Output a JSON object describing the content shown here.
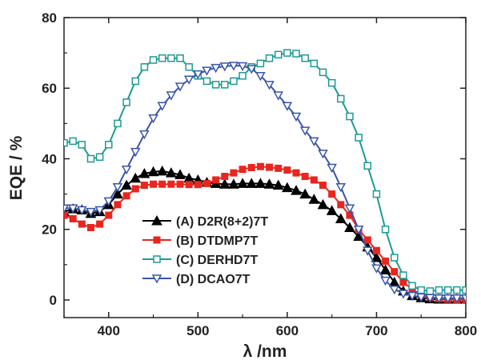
{
  "chart_data": {
    "type": "line",
    "xlabel": "λ /nm",
    "ylabel": "EQE / %",
    "xlim": [
      350,
      800
    ],
    "ylim": [
      -5,
      80
    ],
    "xticks": [
      400,
      500,
      600,
      700,
      800
    ],
    "yticks": [
      0,
      20,
      40,
      60,
      80
    ],
    "grid": false,
    "legend_position": "lower-left",
    "series": [
      {
        "name": "(A) D2R(8+2)7T",
        "color": "#000000",
        "marker": "triangle-up",
        "x": [
          350,
          360,
          370,
          380,
          390,
          400,
          410,
          420,
          430,
          440,
          450,
          460,
          470,
          480,
          490,
          500,
          510,
          520,
          530,
          540,
          550,
          560,
          570,
          580,
          590,
          600,
          610,
          620,
          630,
          640,
          650,
          660,
          670,
          680,
          690,
          700,
          710,
          720,
          730,
          740,
          750,
          760,
          770,
          780,
          790,
          800
        ],
        "y": [
          25,
          25.8,
          25.5,
          24.5,
          25,
          27,
          30,
          32.5,
          34.5,
          35.8,
          36.3,
          36.5,
          36,
          35.5,
          34.5,
          34,
          33.3,
          33,
          32.8,
          32.8,
          33,
          33,
          33,
          32.8,
          32.5,
          31.8,
          31,
          30,
          28.5,
          27,
          25.3,
          23,
          20.5,
          18,
          15,
          12,
          8.5,
          5,
          2.5,
          1.2,
          0.6,
          0.3,
          0.2,
          0.2,
          0.2,
          0.2
        ]
      },
      {
        "name": "(B) DTDMP7T",
        "color": "#e8261f",
        "marker": "square-filled",
        "x": [
          350,
          360,
          370,
          380,
          390,
          400,
          410,
          420,
          430,
          440,
          450,
          460,
          470,
          480,
          490,
          500,
          510,
          520,
          530,
          540,
          550,
          560,
          570,
          580,
          590,
          600,
          610,
          620,
          630,
          640,
          650,
          660,
          670,
          680,
          690,
          700,
          710,
          720,
          730,
          740,
          750,
          760,
          770,
          780,
          790,
          800
        ],
        "y": [
          24,
          23,
          21.5,
          20.5,
          21.5,
          24,
          27,
          29.5,
          31.5,
          32.5,
          32.8,
          32.8,
          32.8,
          32.8,
          32.7,
          32.7,
          33,
          34,
          35,
          36,
          37,
          37.5,
          37.8,
          37.6,
          37.3,
          36.8,
          36,
          35,
          34,
          32.5,
          30,
          27,
          24,
          20,
          17,
          14,
          11,
          8,
          5,
          3,
          1.5,
          0.8,
          0.4,
          0.2,
          0.1,
          0.1
        ]
      },
      {
        "name": "(C) DERHD7T",
        "color": "#1e9a94",
        "marker": "square-open",
        "x": [
          350,
          360,
          370,
          380,
          390,
          400,
          410,
          420,
          430,
          440,
          450,
          460,
          470,
          480,
          490,
          500,
          510,
          520,
          530,
          540,
          550,
          560,
          570,
          580,
          590,
          600,
          610,
          620,
          630,
          640,
          650,
          660,
          670,
          680,
          690,
          700,
          710,
          720,
          730,
          740,
          750,
          760,
          770,
          780,
          790,
          800
        ],
        "y": [
          44.5,
          45,
          44,
          40,
          40.5,
          44,
          50,
          56,
          62,
          66,
          68,
          68.5,
          68.5,
          68.5,
          66,
          63.5,
          62,
          61,
          61,
          62,
          63.5,
          66,
          67,
          68.5,
          69.5,
          70,
          69.8,
          68.5,
          67,
          64.5,
          61.5,
          57,
          52,
          46,
          38,
          30,
          20,
          12,
          7,
          4,
          2.8,
          2.5,
          2.8,
          2.8,
          2.8,
          2.8
        ]
      },
      {
        "name": "(D) DCAO7T",
        "color": "#3a55a8",
        "marker": "triangle-down-open",
        "x": [
          350,
          360,
          370,
          380,
          390,
          400,
          410,
          420,
          430,
          440,
          450,
          460,
          470,
          480,
          490,
          500,
          510,
          520,
          530,
          540,
          550,
          560,
          570,
          580,
          590,
          600,
          610,
          620,
          630,
          640,
          650,
          660,
          670,
          680,
          690,
          700,
          710,
          720,
          730,
          740,
          750,
          760,
          770,
          780,
          790,
          800
        ],
        "y": [
          26,
          26,
          25.5,
          25,
          25.5,
          28,
          32,
          37,
          42,
          47,
          51.5,
          55,
          58,
          60.5,
          62.5,
          64,
          65,
          65.8,
          66.2,
          66.4,
          66.3,
          65.5,
          63.5,
          61,
          58,
          55,
          52,
          48,
          45,
          41.5,
          37.5,
          32,
          26,
          20,
          14,
          9,
          5.5,
          3,
          1.8,
          1.2,
          0.8,
          0.6,
          0.5,
          0.5,
          0.5,
          0.5
        ]
      }
    ]
  }
}
